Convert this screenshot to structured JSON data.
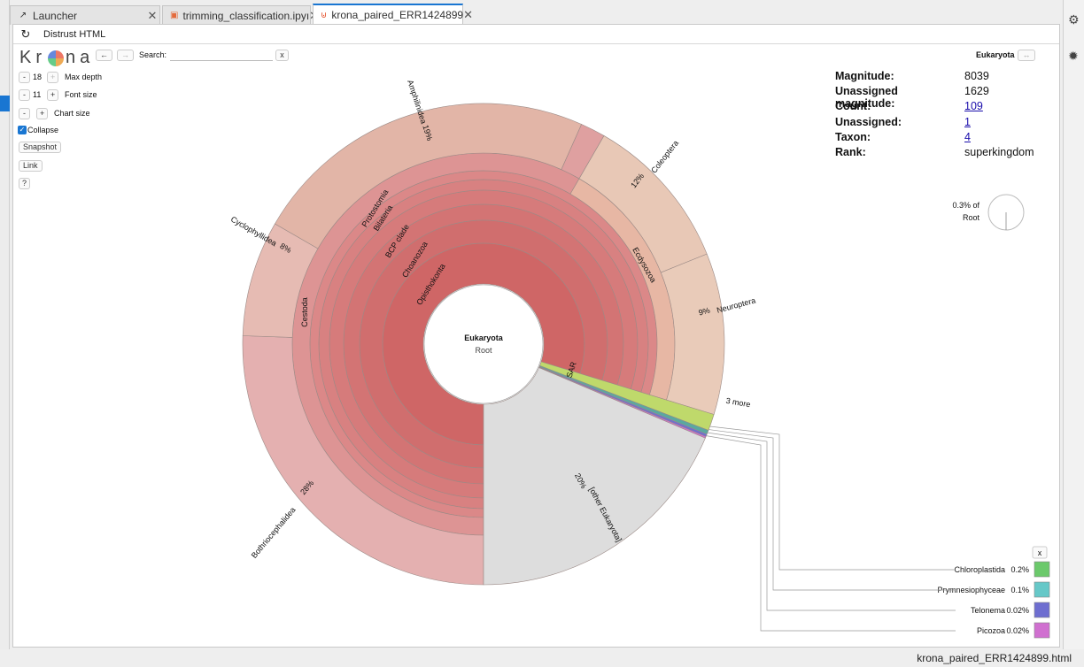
{
  "tabs": [
    {
      "label": "Launcher",
      "icon": "external-icon"
    },
    {
      "label": "trimming_classification.ipyı",
      "icon": "notebook-icon"
    },
    {
      "label": "krona_paired_ERR1424899",
      "icon": "html5-icon"
    }
  ],
  "toolbar": {
    "distrust_label": "Distrust HTML"
  },
  "krona": {
    "logo_left": "Kr",
    "logo_right": "na",
    "search_label": "Search:",
    "search_value": "",
    "search_clear": "x",
    "back": "←",
    "forward": "→",
    "max_depth_value": "18",
    "max_depth_label": "Max depth",
    "font_size_value": "11",
    "font_size_label": "Font size",
    "chart_size_label": "Chart size",
    "minus": "-",
    "plus": "+",
    "collapse_label": "Collapse",
    "snapshot_label": "Snapshot",
    "link_label": "Link",
    "help_label": "?",
    "focus_name": "Eukaryota",
    "focus_arrows": "↔"
  },
  "info": {
    "magnitude_key": "Magnitude:",
    "magnitude_val": "8039",
    "unassigned_mag_key": "Unassigned magnitude:",
    "unassigned_mag_val": "1629",
    "count_key": "Count:",
    "count_val": "109",
    "unassigned_key": "Unassigned:",
    "unassigned_val": "1",
    "taxon_key": "Taxon:",
    "taxon_val": "4",
    "rank_key": "Rank:",
    "rank_val": "superkingdom",
    "pct_of_root": "0.3% of",
    "root_label": "Root"
  },
  "chart_data": {
    "type": "sunburst",
    "center_name": "Eukaryota",
    "center_sub": "Root",
    "inner_rings": [
      "Opisthokonta",
      "Choanozoa",
      "BCP clade",
      "Bilateria",
      "Protostomia"
    ],
    "labels": {
      "cestoda": "Cestoda",
      "ecdysozoa": "Ecdysozoa",
      "sar": "SAR",
      "amphilinidea": "Amphilinidea",
      "amphilinidea_pct": "19%",
      "coleoptera": "Coleoptera",
      "coleoptera_pct": "12%",
      "neuroptera": "Neuroptera",
      "neuroptera_pct": "9%",
      "cyclophyllidea": "Cyclophyllidea",
      "cyclophyllidea_pct": "8%",
      "bothriocephalidea": "Bothriocephalidea",
      "bothriocephalidea_pct": "28%",
      "other": "[other Eukaryota]",
      "other_pct": "20%",
      "three_more": "3 more"
    },
    "leaves": [
      {
        "name": "Bothriocephalidea",
        "percent": 28
      },
      {
        "name": "Amphilinidea",
        "percent": 19
      },
      {
        "name": "Coleoptera",
        "percent": 12
      },
      {
        "name": "Neuroptera",
        "percent": 9
      },
      {
        "name": "Cyclophyllidea",
        "percent": 8
      },
      {
        "name": "[other Eukaryota]",
        "percent": 20
      }
    ],
    "legend_close": "x",
    "legend": [
      {
        "name": "Chloroplastida",
        "percent": "0.2%",
        "color": "#6bc96b"
      },
      {
        "name": "Prymnesiophyceae",
        "percent": "0.1%",
        "color": "#66c8c8"
      },
      {
        "name": "Telonema",
        "percent": "0.02%",
        "color": "#6e6ed0"
      },
      {
        "name": "Picozoa",
        "percent": "0.02%",
        "color": "#d070d0"
      }
    ]
  },
  "status": {
    "filename": "krona_paired_ERR1424899.html"
  }
}
